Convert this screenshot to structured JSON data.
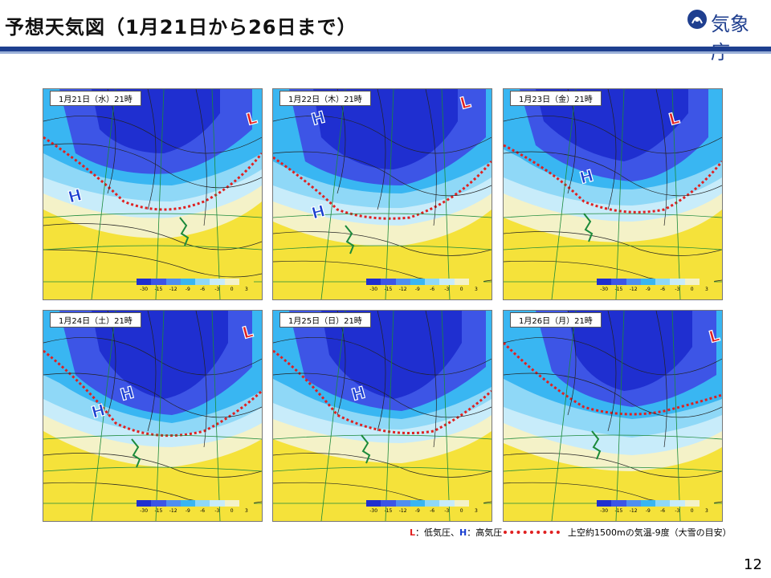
{
  "header": {
    "title": "予想天気図（1月21日から26日まで）",
    "logo_text": "気象庁"
  },
  "maps": [
    {
      "label": "1月21日（水）21時",
      "pressure_marks": [
        "H",
        "L"
      ]
    },
    {
      "label": "1月22日（木）21時",
      "pressure_marks": [
        "H",
        "H",
        "L"
      ]
    },
    {
      "label": "1月23日（金）21時",
      "pressure_marks": [
        "H",
        "L"
      ]
    },
    {
      "label": "1月24日（土）21時",
      "pressure_marks": [
        "H",
        "H",
        "L"
      ]
    },
    {
      "label": "1月25日（日）21時",
      "pressure_marks": [
        "H"
      ]
    },
    {
      "label": "1月26日（月）21時",
      "pressure_marks": [
        "L"
      ]
    }
  ],
  "colorbar": {
    "ticks": [
      "-30",
      "-15",
      "-12",
      "-9",
      "-6",
      "-3",
      "0",
      "3"
    ],
    "colors": [
      "#1f2fd0",
      "#3d55e6",
      "#4f8ef0",
      "#39b6f2",
      "#8fd8f7",
      "#c8ecfa",
      "#f4f2c8",
      "#f5e23a"
    ]
  },
  "legend": {
    "l_symbol": "L",
    "l_text": "：低気圧、",
    "h_symbol": "H",
    "h_text": "：高気圧",
    "line_text": "上空約1500mの気温-9度（大雪の目安）"
  },
  "page_number": "12",
  "colors": {
    "accent": "#1e3f8f",
    "low": "#e02020",
    "high": "#1a3fd0",
    "cold": "#2036d6",
    "warm": "#f5e23a"
  }
}
